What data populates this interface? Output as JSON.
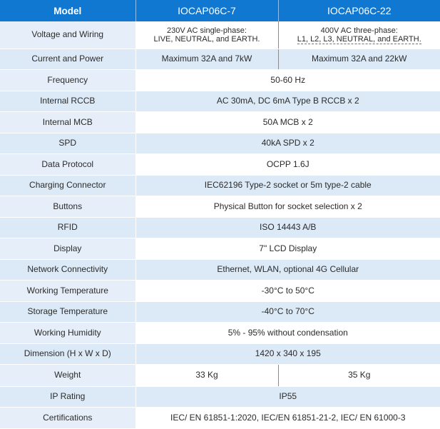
{
  "header": {
    "label": "Model",
    "model_a": "IOCAP06C-7",
    "model_b": "IOCAP06C-22"
  },
  "rows": [
    {
      "label": "Voltage and Wiring",
      "a": "230V AC single-phase:",
      "a2": "LIVE, NEUTRAL, and EARTH.",
      "b": "400V AC three-phase:",
      "b2": "L1, L2, L3, NEUTRAL, and EARTH."
    },
    {
      "label": "Current and Power",
      "a": "Maximum 32A and 7kW",
      "b": "Maximum 32A and 22kW"
    },
    {
      "label": "Frequency",
      "value": "50-60 Hz"
    },
    {
      "label": "Internal RCCB",
      "value": "AC 30mA, DC 6mA Type B RCCB x 2"
    },
    {
      "label": "Internal MCB",
      "value": "50A MCB x 2"
    },
    {
      "label": "SPD",
      "value": "40kA SPD x 2"
    },
    {
      "label": "Data Protocol",
      "value": "OCPP 1.6J"
    },
    {
      "label": "Charging Connector",
      "value": "IEC62196 Type-2 socket or 5m type-2 cable"
    },
    {
      "label": "Buttons",
      "value": "Physical Button for socket selection x 2"
    },
    {
      "label": "RFID",
      "value": "ISO 14443 A/B"
    },
    {
      "label": "Display",
      "value": "7\" LCD Display"
    },
    {
      "label": "Network Connectivity",
      "value": "Ethernet, WLAN, optional 4G Cellular"
    },
    {
      "label": "Working Temperature",
      "value": "-30°C to 50°C"
    },
    {
      "label": "Storage Temperature",
      "value": "-40°C to 70°C"
    },
    {
      "label": "Working Humidity",
      "value": "5% - 95% without condensation"
    },
    {
      "label": "Dimension (H x W x D)",
      "value": "1420 x 340 x 195"
    },
    {
      "label": "Weight",
      "a": "33 Kg",
      "b": "35 Kg"
    },
    {
      "label": "IP Rating",
      "value": "IP55"
    },
    {
      "label": "Certifications",
      "value": "IEC/ EN 61851-1:2020, IEC/EN 61851-21-2, IEC/ EN 61000-3"
    }
  ]
}
